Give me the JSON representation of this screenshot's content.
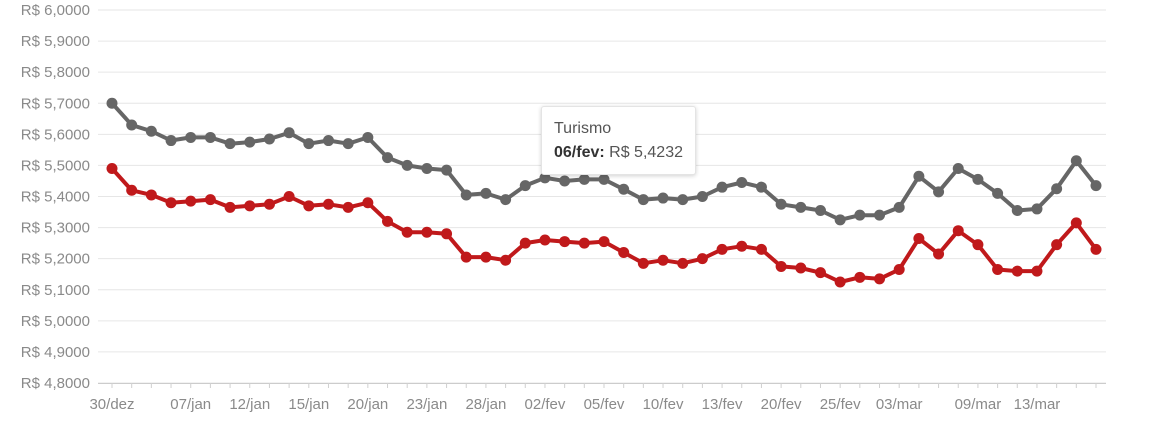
{
  "chart_data": {
    "type": "line",
    "ylim": [
      4.8,
      6.0
    ],
    "y_ticks": [
      "R$ 6,0000",
      "R$ 5,9000",
      "R$ 5,8000",
      "R$ 5,7000",
      "R$ 5,6000",
      "R$ 5,5000",
      "R$ 5,4000",
      "R$ 5,3000",
      "R$ 5,2000",
      "R$ 5,1000",
      "R$ 5,0000",
      "R$ 4,9000",
      "R$ 4,8000"
    ],
    "x_ticks": [
      {
        "label": "30/dez",
        "index": 0
      },
      {
        "label": "07/jan",
        "index": 4
      },
      {
        "label": "12/jan",
        "index": 7
      },
      {
        "label": "15/jan",
        "index": 10
      },
      {
        "label": "20/jan",
        "index": 13
      },
      {
        "label": "23/jan",
        "index": 16
      },
      {
        "label": "28/jan",
        "index": 19
      },
      {
        "label": "02/fev",
        "index": 22
      },
      {
        "label": "05/fev",
        "index": 25
      },
      {
        "label": "10/fev",
        "index": 28
      },
      {
        "label": "13/fev",
        "index": 31
      },
      {
        "label": "20/fev",
        "index": 34
      },
      {
        "label": "25/fev",
        "index": 37
      },
      {
        "label": "03/mar",
        "index": 40
      },
      {
        "label": "09/mar",
        "index": 44
      },
      {
        "label": "13/mar",
        "index": 47
      }
    ],
    "grid": true,
    "series": [
      {
        "name": "Turismo",
        "color": "#666666",
        "values": [
          5.7,
          5.63,
          5.61,
          5.58,
          5.59,
          5.59,
          5.57,
          5.575,
          5.585,
          5.605,
          5.57,
          5.58,
          5.57,
          5.59,
          5.525,
          5.5,
          5.49,
          5.485,
          5.405,
          5.41,
          5.39,
          5.435,
          5.46,
          5.45,
          5.455,
          5.455,
          5.4232,
          5.39,
          5.395,
          5.39,
          5.4,
          5.43,
          5.445,
          5.43,
          5.375,
          5.365,
          5.355,
          5.325,
          5.34,
          5.34,
          5.365,
          5.465,
          5.415,
          5.49,
          5.455,
          5.41,
          5.355,
          5.36,
          5.425,
          5.515,
          5.435
        ]
      },
      {
        "color": "#c0191b",
        "values": [
          5.49,
          5.42,
          5.405,
          5.38,
          5.385,
          5.39,
          5.365,
          5.37,
          5.375,
          5.4,
          5.37,
          5.375,
          5.365,
          5.38,
          5.32,
          5.285,
          5.285,
          5.28,
          5.205,
          5.205,
          5.195,
          5.25,
          5.26,
          5.255,
          5.25,
          5.255,
          5.22,
          5.185,
          5.195,
          5.185,
          5.2,
          5.23,
          5.24,
          5.23,
          5.175,
          5.17,
          5.155,
          5.125,
          5.14,
          5.135,
          5.165,
          5.265,
          5.215,
          5.29,
          5.245,
          5.165,
          5.16,
          5.16,
          5.245,
          5.315,
          5.23
        ]
      }
    ],
    "tooltip": {
      "series": "Turismo",
      "date": "06/fev:",
      "value": "R$ 5,4232",
      "index": 26
    }
  }
}
